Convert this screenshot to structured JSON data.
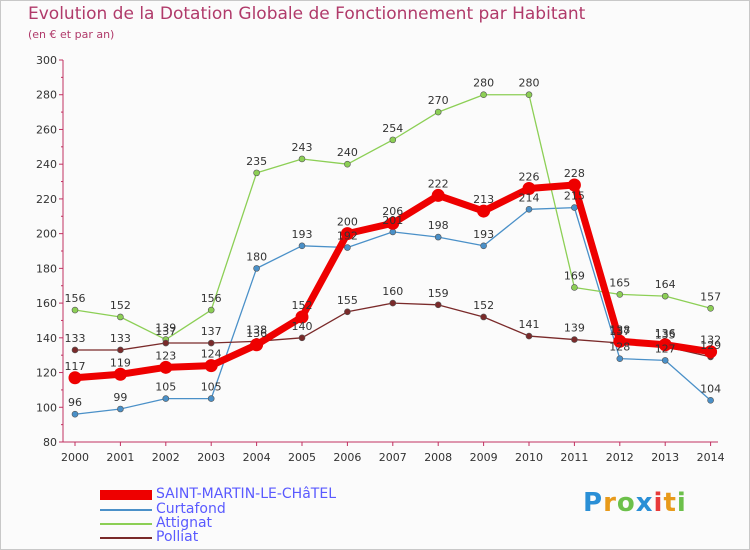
{
  "header": {
    "title": "Evolution de la Dotation Globale de Fonctionnement par Habitant",
    "subtitle": "(en € et par an)"
  },
  "logo": {
    "text": "Proxiti",
    "letters": [
      "P",
      "r",
      "o",
      "x",
      "i",
      "t",
      "i"
    ]
  },
  "chart_data": {
    "type": "line",
    "x": [
      "2000",
      "2001",
      "2002",
      "2003",
      "2004",
      "2005",
      "2006",
      "2007",
      "2008",
      "2009",
      "2010",
      "2011",
      "2012",
      "2013",
      "2014"
    ],
    "ylim": [
      80,
      300
    ],
    "yticks": [
      80,
      100,
      120,
      140,
      160,
      180,
      200,
      220,
      240,
      260,
      280,
      300
    ],
    "grid": false,
    "legend_position": "bottom-left",
    "series": [
      {
        "name": "SAINT-MARTIN-LE-CHâTEL",
        "color": "#ee0000",
        "bold": true,
        "values": [
          117,
          119,
          123,
          124,
          136,
          152,
          200,
          206,
          222,
          213,
          226,
          228,
          138,
          136,
          132
        ]
      },
      {
        "name": "Curtafond",
        "color": "#4a90c8",
        "bold": false,
        "values": [
          96,
          99,
          105,
          105,
          180,
          193,
          192,
          201,
          198,
          193,
          214,
          215,
          128,
          127,
          104
        ]
      },
      {
        "name": "Attignat",
        "color": "#8ccf55",
        "bold": false,
        "values": [
          156,
          152,
          139,
          156,
          235,
          243,
          240,
          254,
          270,
          280,
          280,
          169,
          165,
          164,
          157
        ]
      },
      {
        "name": "Polliat",
        "color": "#7a2a2a",
        "bold": false,
        "values": [
          133,
          133,
          137,
          137,
          138,
          140,
          155,
          160,
          159,
          152,
          141,
          139,
          137,
          135,
          129
        ]
      }
    ]
  }
}
